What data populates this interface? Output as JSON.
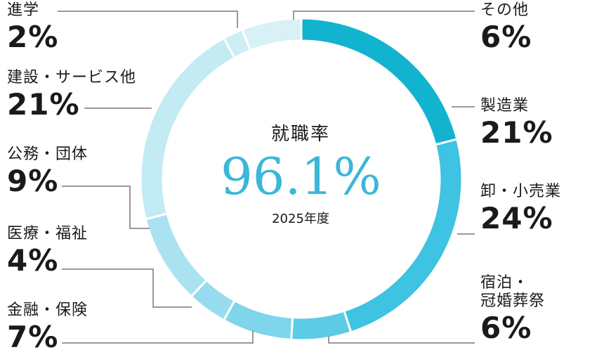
{
  "chart_data": {
    "type": "pie",
    "center": {
      "title": "就職率",
      "value": "96.1%",
      "year": "2025年度"
    },
    "slices": [
      {
        "name": "製造業",
        "label_lines": [
          "製造業"
        ],
        "value": 21,
        "pct": "21%",
        "color": "#12b3cf"
      },
      {
        "name": "卸・小売業",
        "label_lines": [
          "卸・小売業"
        ],
        "value": 24,
        "pct": "24%",
        "color": "#3ec3e2"
      },
      {
        "name": "宿泊・冠婚葬祭",
        "label_lines": [
          "宿泊・",
          "冠婚葬祭"
        ],
        "value": 6,
        "pct": "6%",
        "color": "#5ccbe6"
      },
      {
        "name": "金融・保険",
        "label_lines": [
          "金融・保険"
        ],
        "value": 7,
        "pct": "7%",
        "color": "#7fd5ea"
      },
      {
        "name": "医療・福祉",
        "label_lines": [
          "医療・福祉"
        ],
        "value": 4,
        "pct": "4%",
        "color": "#96dcee"
      },
      {
        "name": "公務・団体",
        "label_lines": [
          "公務・団体"
        ],
        "value": 9,
        "pct": "9%",
        "color": "#aae2f1"
      },
      {
        "name": "建設・サービス他",
        "label_lines": [
          "建設・サービス他"
        ],
        "value": 21,
        "pct": "21%",
        "color": "#c2ebf3"
      },
      {
        "name": "進学",
        "label_lines": [
          "進学"
        ],
        "value": 2,
        "pct": "2%",
        "color": "#cdeef5"
      },
      {
        "name": "その他",
        "label_lines": [
          "その他"
        ],
        "value": 6,
        "pct": "6%",
        "color": "#d7f1f6"
      }
    ]
  }
}
